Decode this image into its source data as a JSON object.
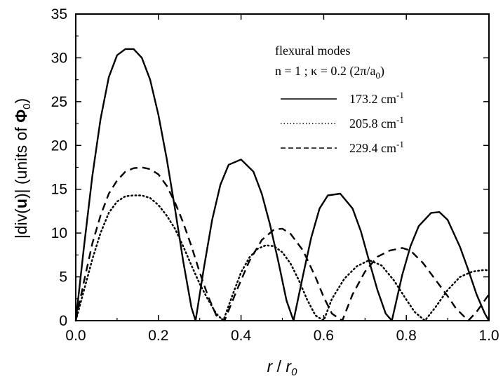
{
  "chart_data": {
    "type": "line",
    "xlabel": "r / r0",
    "ylabel": "|div(u)| (units of Φ0)",
    "xlim": [
      0.0,
      1.0
    ],
    "ylim": [
      0,
      35
    ],
    "xticks": [
      "0.0",
      "0.2",
      "0.4",
      "0.6",
      "0.8",
      "1.0"
    ],
    "yticks": [
      "0",
      "5",
      "10",
      "15",
      "20",
      "25",
      "30",
      "35"
    ],
    "legend": {
      "title_line1": "flexural  modes",
      "title_line2": "n = 1  ;  κ = 0.2 (2π/a0)",
      "placement": "top-right"
    },
    "series": [
      {
        "name": "173.2 cm-1",
        "style": "solid",
        "x": [
          0.0,
          0.02,
          0.04,
          0.06,
          0.08,
          0.1,
          0.12,
          0.14,
          0.16,
          0.18,
          0.2,
          0.22,
          0.24,
          0.26,
          0.28,
          0.29,
          0.31,
          0.33,
          0.35,
          0.37,
          0.4,
          0.43,
          0.45,
          0.47,
          0.49,
          0.51,
          0.527,
          0.55,
          0.57,
          0.59,
          0.61,
          0.64,
          0.67,
          0.69,
          0.71,
          0.73,
          0.75,
          0.765,
          0.79,
          0.81,
          0.83,
          0.86,
          0.88,
          0.9,
          0.93,
          0.95,
          0.97,
          0.99,
          1.0
        ],
        "y": [
          0,
          8.5,
          16.5,
          23,
          27.8,
          30.3,
          31.0,
          31.0,
          30.0,
          27.5,
          23.5,
          18.5,
          12.8,
          6.8,
          1.5,
          0,
          6,
          11.5,
          15.5,
          17.8,
          18.4,
          17.0,
          14.5,
          11.0,
          6.8,
          2.3,
          0,
          5.2,
          9.5,
          12.8,
          14.3,
          14.5,
          12.8,
          10.2,
          6.8,
          3.5,
          0.8,
          0,
          5.2,
          8.5,
          10.8,
          12.3,
          12.4,
          11.5,
          8.4,
          5.8,
          3.0,
          0.8,
          0
        ]
      },
      {
        "name": "205.8 cm-1",
        "style": "dotted",
        "x": [
          0.0,
          0.02,
          0.04,
          0.06,
          0.08,
          0.1,
          0.12,
          0.14,
          0.16,
          0.18,
          0.2,
          0.22,
          0.24,
          0.26,
          0.28,
          0.3,
          0.32,
          0.34,
          0.357,
          0.38,
          0.4,
          0.42,
          0.44,
          0.46,
          0.48,
          0.5,
          0.52,
          0.54,
          0.56,
          0.58,
          0.6,
          0.62,
          0.65,
          0.68,
          0.71,
          0.74,
          0.77,
          0.8,
          0.82,
          0.845,
          0.87,
          0.9,
          0.93,
          0.96,
          0.99,
          1.0
        ],
        "y": [
          0,
          3.5,
          7,
          10,
          12.3,
          13.6,
          14.2,
          14.3,
          14.3,
          14.0,
          13.2,
          12.0,
          10.5,
          8.5,
          6.3,
          4.2,
          2.4,
          0.8,
          0,
          3,
          5.5,
          7.2,
          8.2,
          8.6,
          8.5,
          7.8,
          6.5,
          4.6,
          2.4,
          0.6,
          0,
          2.5,
          4.8,
          6.2,
          6.9,
          6.3,
          4.6,
          2.4,
          1.0,
          0,
          1.5,
          3.5,
          5.0,
          5.6,
          5.8,
          5.7
        ]
      },
      {
        "name": "229.4 cm-1",
        "style": "dashed",
        "x": [
          0.0,
          0.02,
          0.04,
          0.06,
          0.08,
          0.1,
          0.12,
          0.14,
          0.16,
          0.18,
          0.2,
          0.22,
          0.24,
          0.26,
          0.28,
          0.3,
          0.32,
          0.34,
          0.36,
          0.39,
          0.42,
          0.45,
          0.48,
          0.5,
          0.52,
          0.55,
          0.58,
          0.6,
          0.62,
          0.645,
          0.67,
          0.7,
          0.73,
          0.76,
          0.79,
          0.81,
          0.84,
          0.87,
          0.9,
          0.92,
          0.95,
          0.97,
          1.0
        ],
        "y": [
          0,
          4.5,
          8.8,
          12.0,
          14.5,
          16.0,
          17.0,
          17.4,
          17.5,
          17.3,
          16.7,
          15.4,
          13.5,
          11.2,
          8.5,
          5.5,
          2.8,
          0.6,
          0,
          3.5,
          6.8,
          9.2,
          10.4,
          10.5,
          9.9,
          8.0,
          5.0,
          2.7,
          0.8,
          0,
          3.0,
          5.6,
          7.3,
          8.0,
          8.3,
          8.0,
          6.6,
          4.7,
          2.8,
          1.4,
          0,
          1.0,
          3.0
        ]
      }
    ]
  }
}
